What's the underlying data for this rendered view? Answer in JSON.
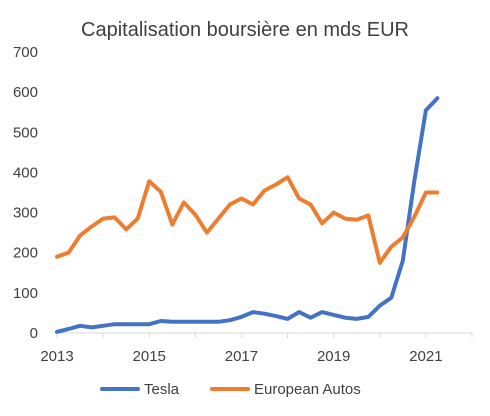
{
  "chart_data": {
    "type": "line",
    "title": "Capitalisation boursière en mds EUR",
    "xlabel": "",
    "ylabel": "",
    "xlim": [
      2013,
      2022
    ],
    "ylim": [
      0,
      700
    ],
    "x_ticks": [
      "2013",
      "2015",
      "2017",
      "2019",
      "2021"
    ],
    "y_ticks": [
      "0",
      "100",
      "200",
      "300",
      "400",
      "500",
      "600",
      "700"
    ],
    "grid": false,
    "legend_position": "bottom",
    "series": [
      {
        "name": "Tesla",
        "color": "#4472C4",
        "x": [
          2013.0,
          2013.25,
          2013.5,
          2013.75,
          2014.0,
          2014.25,
          2014.5,
          2014.75,
          2015.0,
          2015.25,
          2015.5,
          2015.75,
          2016.0,
          2016.25,
          2016.5,
          2016.75,
          2017.0,
          2017.25,
          2017.5,
          2017.75,
          2018.0,
          2018.25,
          2018.5,
          2018.75,
          2019.0,
          2019.25,
          2019.5,
          2019.75,
          2020.0,
          2020.25,
          2020.5,
          2020.75,
          2021.0,
          2021.25
        ],
        "values": [
          3,
          10,
          18,
          14,
          18,
          22,
          22,
          22,
          22,
          30,
          28,
          28,
          28,
          28,
          28,
          32,
          40,
          52,
          48,
          42,
          35,
          52,
          38,
          52,
          45,
          38,
          35,
          40,
          68,
          88,
          180,
          380,
          555,
          585
        ]
      },
      {
        "name": "European Autos",
        "color": "#ED7D31",
        "x": [
          2013.0,
          2013.25,
          2013.5,
          2013.75,
          2014.0,
          2014.25,
          2014.5,
          2014.75,
          2015.0,
          2015.25,
          2015.5,
          2015.75,
          2016.0,
          2016.25,
          2016.5,
          2016.75,
          2017.0,
          2017.25,
          2017.5,
          2017.75,
          2018.0,
          2018.25,
          2018.5,
          2018.75,
          2019.0,
          2019.25,
          2019.5,
          2019.75,
          2020.0,
          2020.25,
          2020.5,
          2020.75,
          2021.0,
          2021.25
        ],
        "values": [
          190,
          200,
          243,
          265,
          285,
          288,
          258,
          285,
          378,
          352,
          270,
          325,
          295,
          250,
          285,
          320,
          335,
          320,
          355,
          370,
          388,
          335,
          320,
          273,
          300,
          285,
          282,
          293,
          175,
          215,
          238,
          290,
          350,
          350
        ]
      }
    ]
  }
}
